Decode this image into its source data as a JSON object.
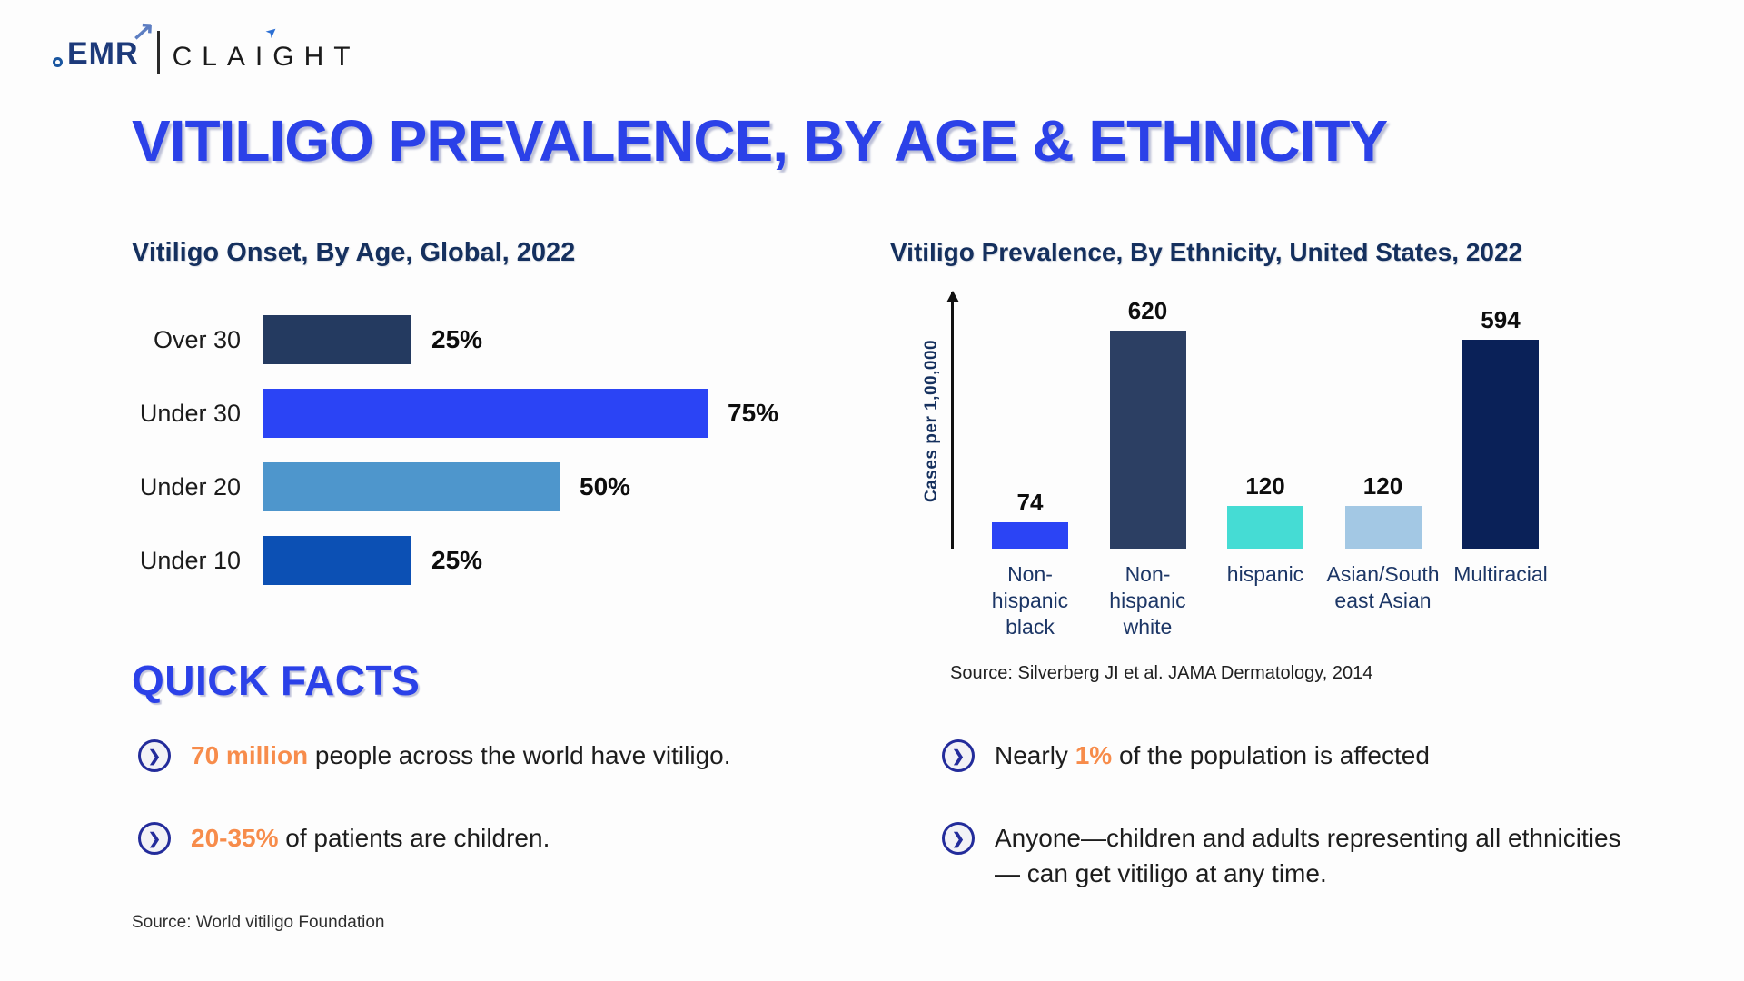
{
  "brand": {
    "emr": "EMR",
    "claight": "CLAIGHT"
  },
  "page_title": "VITILIGO PREVALENCE, BY AGE & ETHNICITY",
  "chart_data": [
    {
      "type": "bar",
      "orientation": "horizontal",
      "title": "Vitiligo Onset, By Age, Global, 2022",
      "categories": [
        "Over 30",
        "Under 30",
        "Under 20",
        "Under 10"
      ],
      "values": [
        25,
        75,
        50,
        25
      ],
      "value_labels": [
        "25%",
        "75%",
        "50%",
        "25%"
      ],
      "unit": "%",
      "xlim": [
        0,
        100
      ],
      "bar_colors": [
        "#243a60",
        "#2b44f5",
        "#4e96cc",
        "#0c50b4"
      ],
      "grid": false,
      "legend": false
    },
    {
      "type": "bar",
      "orientation": "vertical",
      "title": "Vitiligo Prevalence, By Ethnicity, United States, 2022",
      "categories": [
        "Non-hispanic black",
        "Non-hispanic white",
        "hispanic",
        "Asian/South east Asian",
        "Multiracial"
      ],
      "values": [
        74,
        620,
        120,
        120,
        594
      ],
      "value_labels": [
        "74",
        "620",
        "120",
        "120",
        "594"
      ],
      "ylabel": "Cases per 1,00,000",
      "ylim": [
        0,
        650
      ],
      "bar_colors": [
        "#2b44f5",
        "#2c3f63",
        "#45dcd4",
        "#a3c8e4",
        "#0a2158"
      ],
      "source": "Source: Silverberg JI et al. JAMA Dermatology, 2014",
      "grid": false,
      "legend": false
    }
  ],
  "quick_facts": {
    "heading": "QUICK FACTS",
    "items": [
      {
        "segments": [
          {
            "text": "70 million",
            "highlight": true
          },
          {
            "text": " people across the world have vitiligo.",
            "highlight": false
          }
        ]
      },
      {
        "segments": [
          {
            "text": "Nearly ",
            "highlight": false
          },
          {
            "text": "1%",
            "highlight": true
          },
          {
            "text": " of the population is affected",
            "highlight": false
          }
        ]
      },
      {
        "segments": [
          {
            "text": "20-35%",
            "highlight": true
          },
          {
            "text": " of patients are children.",
            "highlight": false
          }
        ]
      },
      {
        "segments": [
          {
            "text": "Anyone—children and adults representing all ethnicities— can get vitiligo at any time.",
            "highlight": false
          }
        ]
      }
    ]
  },
  "footer_source": "Source: World vitiligo Foundation",
  "icons": {
    "bullet_chevron": "❯",
    "logo_arrow": "↗",
    "claight_arrow": "➤"
  },
  "colors": {
    "accent_blue": "#2b41e8",
    "heading_navy": "#15305e",
    "highlight_orange": "#f78c4b",
    "bullet_indigo": "#232c9b"
  }
}
